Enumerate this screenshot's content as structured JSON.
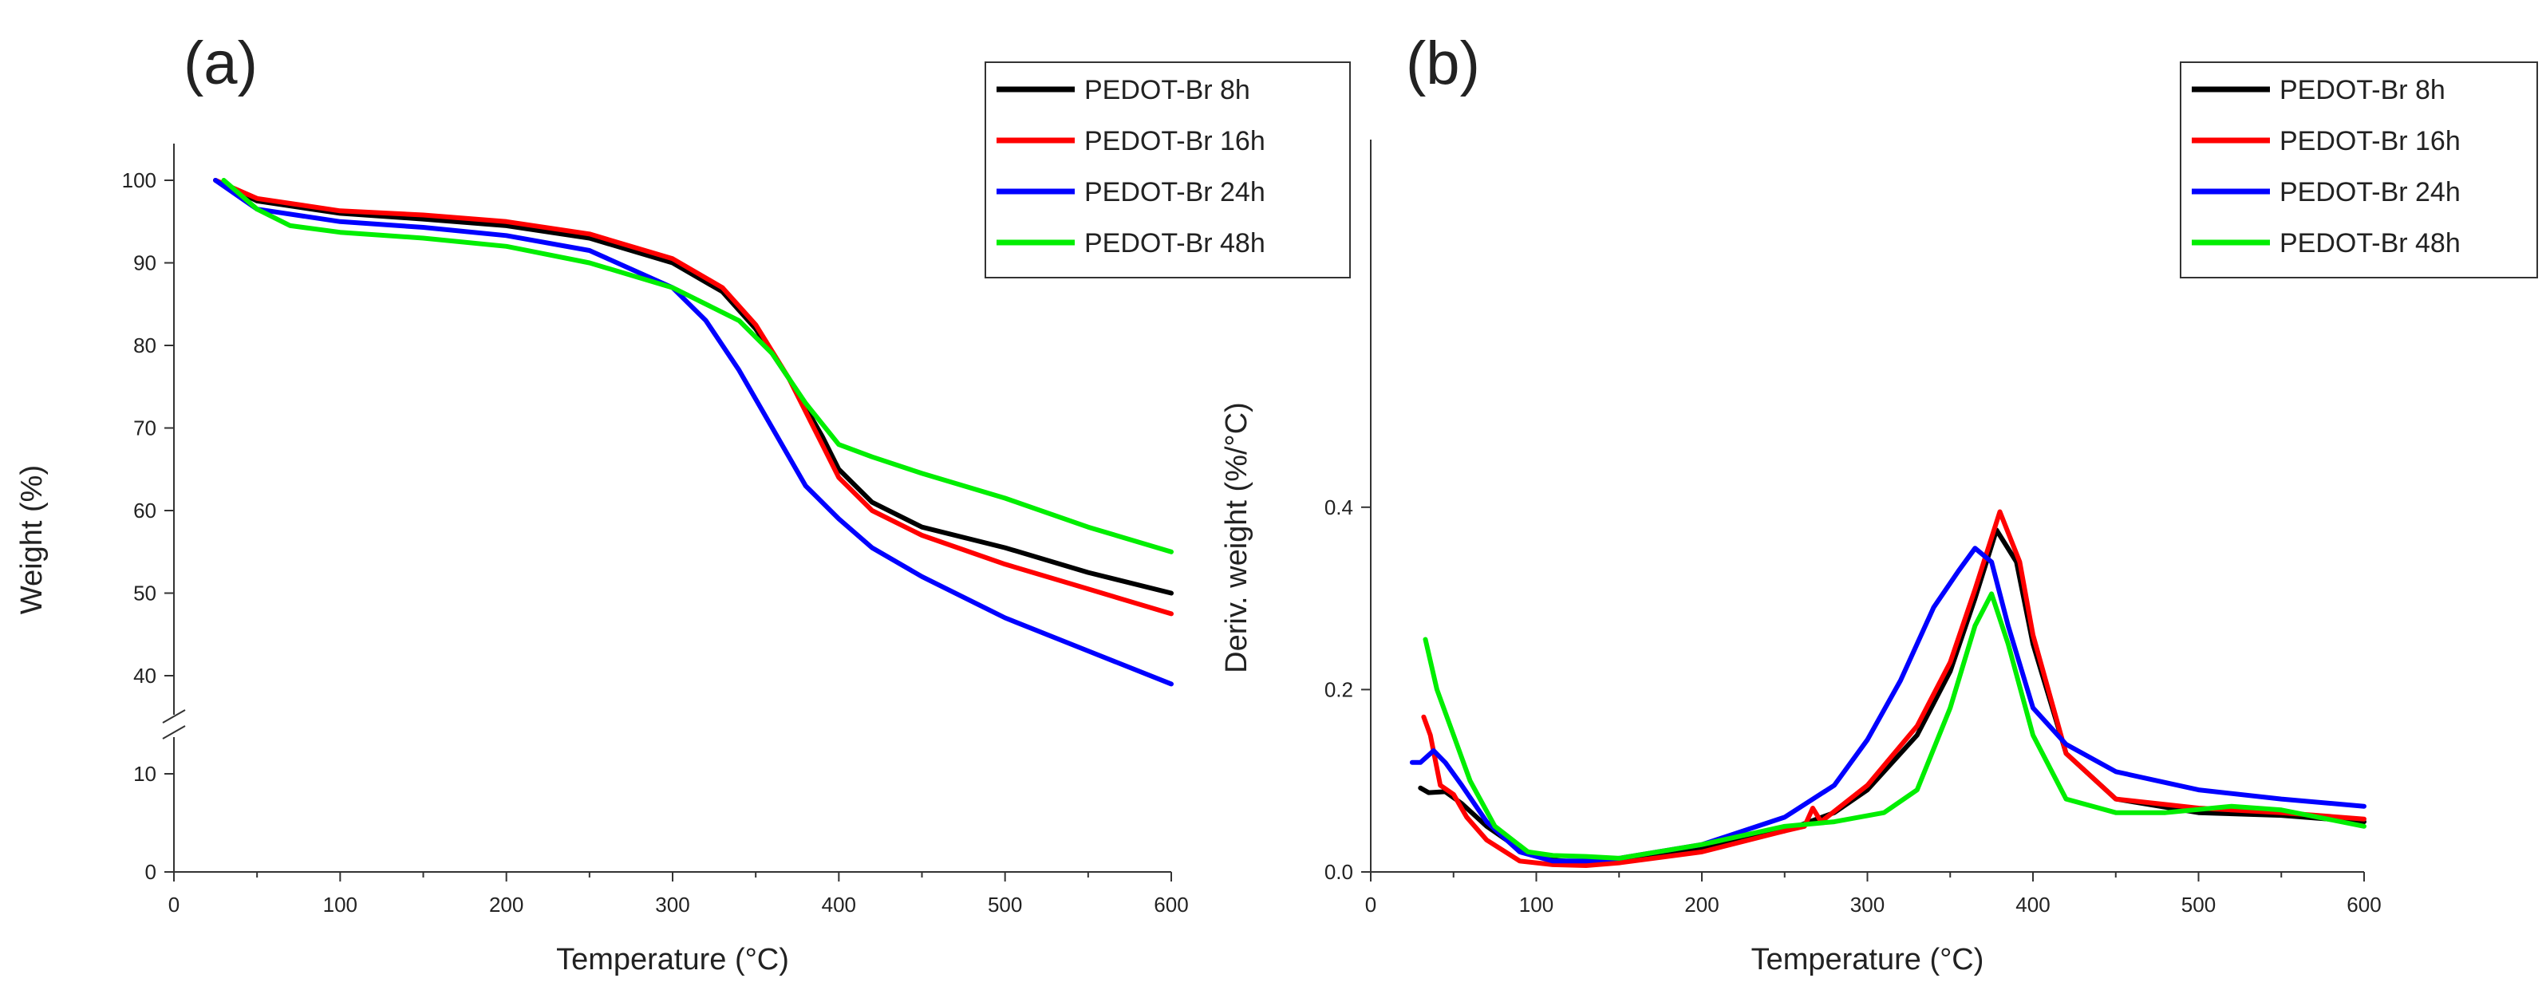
{
  "chart_data": [
    {
      "panel_label": "(a)",
      "type": "line",
      "xlabel": "Temperature (°C)",
      "ylabel": "Weight (%)",
      "xlim": [
        0,
        600
      ],
      "ylim": [
        0,
        100
      ],
      "axis_break": "between 10 and 40",
      "x_ticks": [
        "0",
        "100",
        "200",
        "300",
        "400",
        "500",
        "600"
      ],
      "y_ticks": [
        "0",
        "10",
        "40",
        "50",
        "60",
        "70",
        "80",
        "90",
        "100"
      ],
      "legend_position": "top-right",
      "grid": false,
      "series": [
        {
          "name": "PEDOT-Br 8h",
          "color": "#000000",
          "x": [
            25,
            50,
            100,
            150,
            200,
            250,
            300,
            330,
            350,
            370,
            390,
            400,
            420,
            450,
            500,
            550,
            600
          ],
          "y": [
            100,
            97.5,
            96,
            95.3,
            94.5,
            93,
            90,
            86.5,
            82,
            76,
            69,
            65,
            61,
            58,
            55.5,
            52.5,
            50
          ]
        },
        {
          "name": "PEDOT-Br 16h",
          "color": "#ff0000",
          "x": [
            25,
            50,
            100,
            150,
            200,
            250,
            300,
            330,
            350,
            370,
            390,
            400,
            420,
            450,
            500,
            550,
            600
          ],
          "y": [
            100,
            97.8,
            96.3,
            95.8,
            95,
            93.5,
            90.5,
            87,
            82.5,
            76,
            68,
            64,
            60,
            57,
            53.5,
            50.5,
            47.5
          ]
        },
        {
          "name": "PEDOT-Br 24h",
          "color": "#0000ff",
          "x": [
            25,
            50,
            100,
            150,
            200,
            250,
            300,
            320,
            340,
            360,
            380,
            400,
            420,
            450,
            500,
            550,
            600
          ],
          "y": [
            100,
            96.5,
            95,
            94.3,
            93.3,
            91.5,
            87,
            83,
            77,
            70,
            63,
            59,
            55.5,
            52,
            47,
            43,
            39
          ]
        },
        {
          "name": "PEDOT-Br 48h",
          "color": "#00ee00",
          "x": [
            30,
            50,
            70,
            100,
            150,
            200,
            250,
            300,
            340,
            360,
            380,
            400,
            420,
            450,
            500,
            550,
            600
          ],
          "y": [
            100,
            96.5,
            94.5,
            93.7,
            93,
            92,
            90,
            87,
            83,
            79,
            73,
            68,
            66.5,
            64.5,
            61.5,
            58,
            55
          ]
        }
      ]
    },
    {
      "panel_label": "(b)",
      "type": "line",
      "xlabel": "Temperature (°C)",
      "ylabel": "Deriv. weight (%/°C)",
      "xlim": [
        0,
        600
      ],
      "ylim": [
        0,
        0.5
      ],
      "x_ticks": [
        "0",
        "100",
        "200",
        "300",
        "400",
        "500",
        "600"
      ],
      "y_ticks": [
        "0.0",
        "0.2",
        "0.4"
      ],
      "legend_position": "top-right",
      "grid": false,
      "series": [
        {
          "name": "PEDOT-Br 8h",
          "color": "#000000",
          "x": [
            30,
            35,
            45,
            55,
            70,
            90,
            110,
            130,
            150,
            200,
            250,
            280,
            300,
            330,
            350,
            365,
            378,
            390,
            400,
            420,
            450,
            500,
            550,
            600
          ],
          "y": [
            0.092,
            0.087,
            0.088,
            0.075,
            0.05,
            0.025,
            0.013,
            0.01,
            0.012,
            0.025,
            0.045,
            0.065,
            0.09,
            0.15,
            0.22,
            0.3,
            0.375,
            0.34,
            0.25,
            0.13,
            0.08,
            0.065,
            0.062,
            0.055
          ]
        },
        {
          "name": "PEDOT-Br 16h",
          "color": "#ff0000",
          "x": [
            32,
            36,
            42,
            50,
            58,
            70,
            90,
            110,
            130,
            150,
            200,
            250,
            262,
            267,
            272,
            300,
            330,
            350,
            365,
            380,
            392,
            400,
            420,
            450,
            500,
            550,
            600
          ],
          "y": [
            0.17,
            0.15,
            0.095,
            0.085,
            0.06,
            0.035,
            0.012,
            0.008,
            0.007,
            0.01,
            0.022,
            0.045,
            0.05,
            0.07,
            0.055,
            0.095,
            0.16,
            0.23,
            0.31,
            0.395,
            0.34,
            0.26,
            0.13,
            0.08,
            0.07,
            0.065,
            0.058
          ]
        },
        {
          "name": "PEDOT-Br 24h",
          "color": "#0000ff",
          "x": [
            25,
            30,
            38,
            45,
            55,
            70,
            90,
            110,
            130,
            150,
            200,
            250,
            280,
            300,
            320,
            340,
            355,
            365,
            375,
            385,
            400,
            420,
            450,
            500,
            550,
            600
          ],
          "y": [
            0.12,
            0.12,
            0.133,
            0.12,
            0.095,
            0.055,
            0.022,
            0.012,
            0.012,
            0.015,
            0.03,
            0.06,
            0.095,
            0.145,
            0.21,
            0.29,
            0.33,
            0.355,
            0.34,
            0.27,
            0.18,
            0.14,
            0.11,
            0.09,
            0.08,
            0.072
          ]
        },
        {
          "name": "PEDOT-Br 48h",
          "color": "#00ee00",
          "x": [
            33,
            40,
            50,
            60,
            75,
            95,
            110,
            130,
            150,
            200,
            250,
            280,
            310,
            330,
            350,
            365,
            375,
            385,
            400,
            420,
            450,
            480,
            520,
            550,
            600
          ],
          "y": [
            0.255,
            0.2,
            0.15,
            0.1,
            0.05,
            0.022,
            0.018,
            0.017,
            0.015,
            0.03,
            0.05,
            0.055,
            0.065,
            0.09,
            0.18,
            0.27,
            0.305,
            0.25,
            0.15,
            0.08,
            0.065,
            0.065,
            0.072,
            0.068,
            0.05
          ]
        }
      ]
    }
  ]
}
